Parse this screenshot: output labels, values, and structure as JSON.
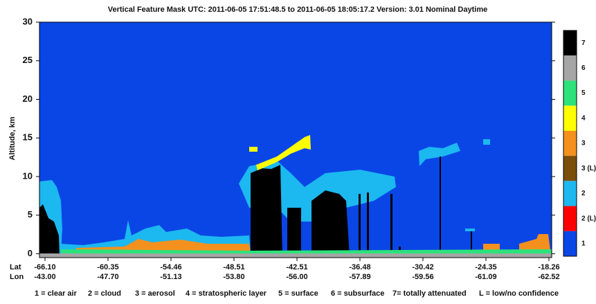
{
  "chart_data": {
    "type": "image",
    "title": "Vertical Feature Mask    UTC:  2011-06-05    17:51:48.5   to   2011-06-05    18:05:17.2    Version: 3.01   Nominal Daytime",
    "ylabel": "Altitude, km",
    "ylim": [
      -0.5,
      30
    ],
    "yticks": [
      0,
      5,
      10,
      15,
      20,
      25,
      30
    ],
    "x_row_labels": [
      "Lat",
      "Lon"
    ],
    "lat": [
      "-66.10",
      "-60.35",
      "-54.46",
      "-48.51",
      "-42.51",
      "-36.48",
      "-30.42",
      "-24.35",
      "-18.26"
    ],
    "lon": [
      "-43.00",
      "-47.70",
      "-51.13",
      "-53.80",
      "-56.00",
      "-57.89",
      "-59.56",
      "-61.09",
      "-62.52"
    ],
    "colorbar": [
      {
        "label": "7",
        "color": "#000000"
      },
      {
        "label": "6",
        "color": "#a6a6a6"
      },
      {
        "label": "5",
        "color": "#2de27a"
      },
      {
        "label": "4",
        "color": "#ffff00"
      },
      {
        "label": "3",
        "color": "#f4901e"
      },
      {
        "label": "3 (L)",
        "color": "#7a4e0a"
      },
      {
        "label": "2",
        "color": "#1cb8f0"
      },
      {
        "label": "2 (L)",
        "color": "#ff0000"
      },
      {
        "label": "1",
        "color": "#0a46e6"
      }
    ],
    "legend": [
      "1 = clear air",
      "2 = cloud",
      "3 = aerosol",
      "4 = stratospheric layer",
      "5 = surface",
      "6 = subsurface",
      "7= totally attenuated",
      "L = low/no confidence"
    ]
  }
}
